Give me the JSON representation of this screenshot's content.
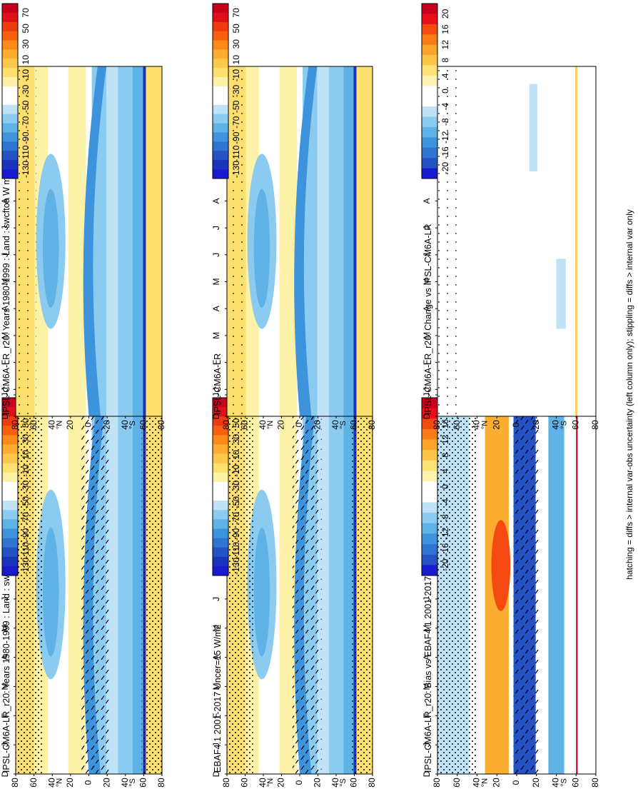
{
  "footer": "hatching = diffs > internal var-obs uncertainty (left column only); stippling = diffs > internal var only",
  "months": [
    "D",
    "J",
    "F",
    "M",
    "A",
    "M",
    "J",
    "J",
    "A",
    "S",
    "O",
    "N",
    "D",
    "J"
  ],
  "lat_labels": [
    "80",
    "60",
    "40",
    "20",
    "0",
    "20",
    "40",
    "60",
    "80"
  ],
  "lat_units": [
    "°N",
    "°S"
  ],
  "palette_main": [
    "#c8001e",
    "#e0101a",
    "#f03a10",
    "#f86010",
    "#fc8a18",
    "#fdae30",
    "#fdc94c",
    "#fde070",
    "#fef2a8",
    "#ffffff",
    "#ffffff",
    "#bfe2f6",
    "#8ccbf0",
    "#5fb2e6",
    "#3d94dc",
    "#2f74d0",
    "#2552c4",
    "#1a34bc",
    "#1a1ad0"
  ],
  "palette_diff": [
    "#c8001e",
    "#e8101a",
    "#f44a12",
    "#f97a16",
    "#fca42a",
    "#fdc648",
    "#fde27a",
    "#fef3b0",
    "#ffffff",
    "#ffffff",
    "#bfe2f6",
    "#8ccbf0",
    "#5fb2e6",
    "#3d94dc",
    "#2f74d0",
    "#2552c4",
    "#1a1ad0"
  ],
  "chart_data": [
    {
      "type": "heatmap",
      "title": "IPSL-CM6A-LR_r20: Years 1980-1999 : Land : swcftoa W m⁻²",
      "xlabel": "",
      "ylabel": "",
      "x": [
        "D",
        "J",
        "F",
        "M",
        "A",
        "M",
        "J",
        "J",
        "A",
        "S",
        "O",
        "N",
        "D",
        "J"
      ],
      "y": [
        "80°N",
        "60",
        "40",
        "20",
        "0",
        "20",
        "40",
        "60",
        "80°S"
      ],
      "colorbar": [
        "70",
        "50",
        "30",
        "10",
        "-10",
        "-30",
        "-50",
        "-70",
        "-90",
        "-110",
        "-130"
      ],
      "hatching": true,
      "stippling": true
    },
    {
      "type": "heatmap",
      "title": "IPSL-CM6A-LR_r20: Years 1980-1999 : Land : swcftoa W m⁻²",
      "xlabel": "",
      "ylabel": "",
      "x": [
        "D",
        "J",
        "F",
        "M",
        "A",
        "M",
        "J",
        "J",
        "A",
        "S",
        "O",
        "N",
        "D",
        "J"
      ],
      "y": [
        "80°N",
        "60",
        "40",
        "20",
        "0",
        "20",
        "40",
        "60",
        "80°S"
      ],
      "colorbar": [
        "70",
        "50",
        "30",
        "10",
        "-10",
        "-30",
        "-50",
        "-70",
        "-90",
        "-110",
        "-130"
      ],
      "hatching": false,
      "stippling": true
    },
    {
      "type": "heatmap",
      "title": "EBAF4.1 2001-2017 Uncer=15 W/m2",
      "xlabel": "",
      "ylabel": "",
      "x": [
        "D",
        "J",
        "F",
        "M",
        "A",
        "M",
        "J",
        "J",
        "A",
        "S",
        "O",
        "N",
        "D",
        "J"
      ],
      "y": [
        "80°N",
        "60",
        "40",
        "20",
        "0",
        "20",
        "40",
        "60",
        "80°S"
      ],
      "colorbar": [
        "70",
        "50",
        "30",
        "10",
        "-10",
        "-30",
        "-50",
        "-70",
        "-90",
        "-110",
        "-130"
      ],
      "hatching": true,
      "stippling": true
    },
    {
      "type": "heatmap",
      "title": "IPSL-CM6A-LR",
      "xlabel": "",
      "ylabel": "",
      "x": [
        "D",
        "J",
        "F",
        "M",
        "A",
        "M",
        "J",
        "J",
        "A",
        "S",
        "O",
        "N",
        "D",
        "J"
      ],
      "y": [
        "80°N",
        "60",
        "40",
        "20",
        "0",
        "20",
        "40",
        "60",
        "80°S"
      ],
      "colorbar": [
        "70",
        "50",
        "30",
        "10",
        "-10",
        "-30",
        "-50",
        "-70",
        "-90",
        "-110",
        "-130"
      ],
      "hatching": false,
      "stippling": true
    },
    {
      "type": "heatmap",
      "title": "IPSL-CM6A-LR_r20: Bias vs EBAF4.1 2001-2017",
      "xlabel": "",
      "ylabel": "",
      "x": [
        "D",
        "J",
        "F",
        "M",
        "A",
        "M",
        "J",
        "J",
        "A",
        "S",
        "O",
        "N",
        "D",
        "J"
      ],
      "y": [
        "80°N",
        "60",
        "40",
        "20",
        "0",
        "20",
        "40",
        "60",
        "80°S"
      ],
      "colorbar": [
        "20",
        "16",
        "12",
        "8",
        "4",
        "0",
        "-4",
        "-8",
        "-12",
        "-16",
        "-20"
      ],
      "hatching": true,
      "stippling": true
    },
    {
      "type": "heatmap",
      "title": "IPSL-CM6A-LR_r20: Change vs IPSL-CM6A-LR",
      "xlabel": "",
      "ylabel": "",
      "x": [
        "D",
        "J",
        "F",
        "M",
        "A",
        "M",
        "J",
        "J",
        "A",
        "S",
        "O",
        "N",
        "D",
        "J"
      ],
      "y": [
        "80°N",
        "60",
        "40",
        "20",
        "0",
        "20",
        "40",
        "60",
        "80°S"
      ],
      "colorbar": [
        "20",
        "16",
        "12",
        "8",
        "4",
        "0",
        "-4",
        "-8",
        "-12",
        "-16",
        "-20"
      ],
      "hatching": false,
      "stippling": true
    }
  ]
}
